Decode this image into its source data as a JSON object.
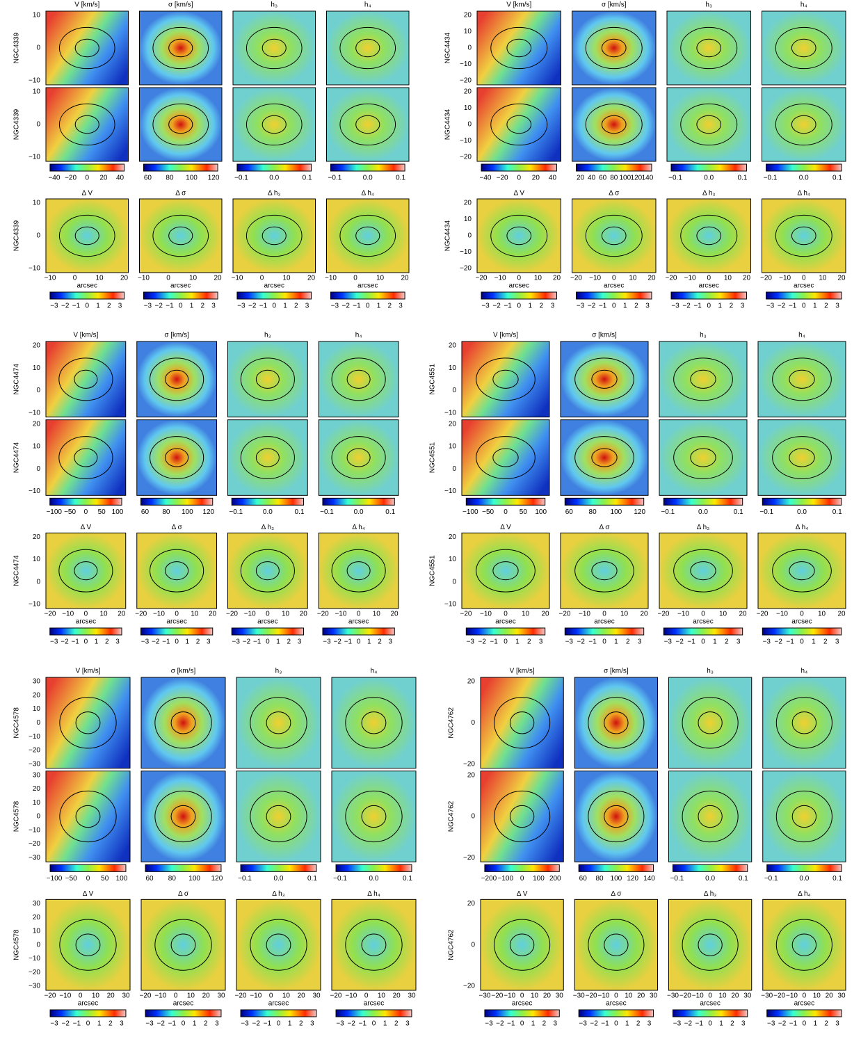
{
  "common": {
    "titles": [
      "V [km/s]",
      "σ [km/s]",
      "h₃",
      "h₄"
    ],
    "delta_titles": [
      "Δ V",
      "Δ σ",
      "Δ h₃",
      "Δ h₄"
    ],
    "xlabel": "arcsec",
    "delta_cbar_ticks": [
      "−3",
      "−2",
      "−1",
      "0",
      "1",
      "2",
      "3"
    ]
  },
  "panels": [
    {
      "galaxy": "NGC4339",
      "yticks": [
        "10",
        "0",
        "−10"
      ],
      "xticks": [
        "−10",
        "0",
        "10",
        "20"
      ],
      "cbar_ticks": [
        [
          "−40",
          "−20",
          "0",
          "20",
          "40"
        ],
        [
          "60",
          "80",
          "100",
          "120"
        ],
        [
          "−0.1",
          "0.0",
          "0.1"
        ],
        [
          "−0.1",
          "0.0",
          "0.1"
        ]
      ]
    },
    {
      "galaxy": "NGC4434",
      "yticks": [
        "20",
        "10",
        "0",
        "−10",
        "−20"
      ],
      "xticks": [
        "−20",
        "−10",
        "0",
        "10",
        "20"
      ],
      "cbar_ticks": [
        [
          "−40",
          "−20",
          "0",
          "20",
          "40"
        ],
        [
          "20",
          "40",
          "60",
          "80",
          "100",
          "120",
          "140"
        ],
        [
          "−0.1",
          "0.0",
          "0.1"
        ],
        [
          "−0.1",
          "0.0",
          "0.1"
        ]
      ]
    },
    {
      "galaxy": "NGC4474",
      "yticks": [
        "20",
        "10",
        "0",
        "−10"
      ],
      "xticks": [
        "−20",
        "−10",
        "0",
        "10",
        "20"
      ],
      "cbar_ticks": [
        [
          "−100",
          "−50",
          "0",
          "50",
          "100"
        ],
        [
          "60",
          "80",
          "100",
          "120"
        ],
        [
          "−0.1",
          "0.0",
          "0.1"
        ],
        [
          "−0.1",
          "0.0",
          "0.1"
        ]
      ]
    },
    {
      "galaxy": "NGC4551",
      "yticks": [
        "20",
        "10",
        "0",
        "−10"
      ],
      "xticks": [
        "−20",
        "−10",
        "0",
        "10",
        "20"
      ],
      "cbar_ticks": [
        [
          "−100",
          "−50",
          "0",
          "50",
          "100"
        ],
        [
          "60",
          "80",
          "100",
          "120"
        ],
        [
          "−0.1",
          "0.0",
          "0.1"
        ],
        [
          "−0.1",
          "0.0",
          "0.1"
        ]
      ]
    },
    {
      "galaxy": "NGC4578",
      "yticks": [
        "30",
        "20",
        "10",
        "0",
        "−10",
        "−20",
        "−30"
      ],
      "xticks": [
        "−20",
        "−10",
        "0",
        "10",
        "20",
        "30"
      ],
      "cbar_ticks": [
        [
          "−100",
          "−50",
          "0",
          "50",
          "100"
        ],
        [
          "60",
          "80",
          "100",
          "120"
        ],
        [
          "−0.1",
          "0.0",
          "0.1"
        ],
        [
          "−0.1",
          "0.0",
          "0.1"
        ]
      ]
    },
    {
      "galaxy": "NGC4762",
      "yticks": [
        "20",
        "0",
        "−20"
      ],
      "xticks": [
        "−30",
        "−20",
        "−10",
        "0",
        "10",
        "20",
        "30"
      ],
      "cbar_ticks": [
        [
          "−200",
          "−100",
          "0",
          "100",
          "200"
        ],
        [
          "60",
          "80",
          "100",
          "120",
          "140"
        ],
        [
          "−0.1",
          "0.0",
          "0.1"
        ],
        [
          "−0.1",
          "0.0",
          "0.1"
        ]
      ]
    }
  ]
}
